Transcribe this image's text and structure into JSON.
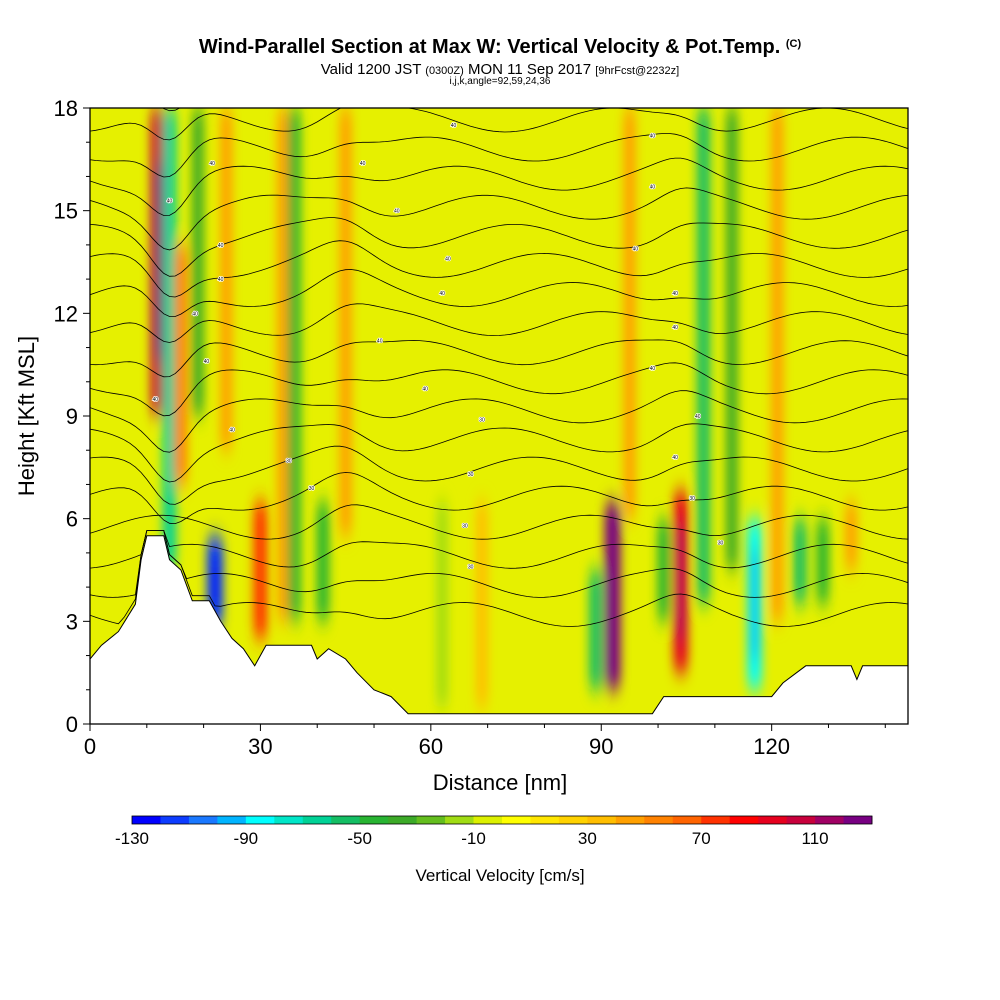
{
  "title": {
    "main": "Wind-Parallel Section at Max W: Vertical Velocity & Pot.Temp.",
    "copyright": "(C)",
    "valid": "Valid 1200 JST",
    "utc": "(0300Z)",
    "date": "MON 11 Sep 2017",
    "fcst": "[9hrFcst@2232z]",
    "indices": "i,j,k,angle=92,59,24,36"
  },
  "chart_data": {
    "type": "heatmap",
    "xlabel": "Distance [nm]",
    "ylabel": "Height [Kft MSL]",
    "xlim": [
      0,
      144
    ],
    "ylim": [
      0,
      18
    ],
    "x_ticks": [
      0,
      30,
      60,
      90,
      120
    ],
    "y_ticks": [
      0,
      3,
      6,
      9,
      12,
      15,
      18
    ],
    "background_color": "#e6f000",
    "colorbar": {
      "label": "Vertical Velocity [cm/s]",
      "range": [
        -130,
        130
      ],
      "step": 10,
      "tick_labels": [
        -130,
        -90,
        -50,
        -10,
        30,
        70,
        110
      ],
      "colors": [
        "#0000ff",
        "#0d3cff",
        "#1a78ff",
        "#00b4ff",
        "#00ffff",
        "#00e6c8",
        "#00d296",
        "#14be64",
        "#28b432",
        "#3caa28",
        "#64be1e",
        "#a0dc14",
        "#dcf000",
        "#ffff00",
        "#ffe600",
        "#ffd200",
        "#ffbe00",
        "#ffa000",
        "#ff8200",
        "#ff6400",
        "#ff3200",
        "#ff0000",
        "#e6001e",
        "#c8003c",
        "#a00064",
        "#780082"
      ]
    },
    "vertical_velocity_features_cm_s": [
      {
        "x": 12,
        "y_range": [
          9.0,
          18
        ],
        "w": 100
      },
      {
        "x": 14,
        "y_range": [
          4.5,
          18
        ],
        "w": -70
      },
      {
        "x": 16,
        "y_range": [
          7.0,
          14
        ],
        "w": 50
      },
      {
        "x": 19,
        "y_range": [
          9.0,
          18
        ],
        "w": -40
      },
      {
        "x": 22,
        "y_range": [
          2.8,
          5.5
        ],
        "w": -120
      },
      {
        "x": 24,
        "y_range": [
          8.0,
          18
        ],
        "w": 40
      },
      {
        "x": 30,
        "y_range": [
          2.5,
          6.5
        ],
        "w": 70
      },
      {
        "x": 34,
        "y_range": [
          3.0,
          18
        ],
        "w": 40
      },
      {
        "x": 36,
        "y_range": [
          3.0,
          18
        ],
        "w": -50
      },
      {
        "x": 41,
        "y_range": [
          3.0,
          6.5
        ],
        "w": -50
      },
      {
        "x": 45,
        "y_range": [
          5.5,
          18
        ],
        "w": 40
      },
      {
        "x": 62,
        "y_range": [
          0.5,
          6.5
        ],
        "w": -20
      },
      {
        "x": 69,
        "y_range": [
          0.5,
          6.5
        ],
        "w": 30
      },
      {
        "x": 89,
        "y_range": [
          1.0,
          4.5
        ],
        "w": -60
      },
      {
        "x": 92,
        "y_range": [
          1.0,
          6.5
        ],
        "w": 120
      },
      {
        "x": 95,
        "y_range": [
          6.0,
          18
        ],
        "w": 40
      },
      {
        "x": 101,
        "y_range": [
          3.0,
          6.0
        ],
        "w": -50
      },
      {
        "x": 104,
        "y_range": [
          1.5,
          6.8
        ],
        "w": 90
      },
      {
        "x": 108,
        "y_range": [
          3.5,
          18
        ],
        "w": -60
      },
      {
        "x": 113,
        "y_range": [
          4.5,
          18
        ],
        "w": -40
      },
      {
        "x": 117,
        "y_range": [
          1.0,
          6.0
        ],
        "w": -90
      },
      {
        "x": 121,
        "y_range": [
          3.0,
          18
        ],
        "w": 40
      },
      {
        "x": 125,
        "y_range": [
          3.5,
          6.0
        ],
        "w": -60
      },
      {
        "x": 129,
        "y_range": [
          3.5,
          6.0
        ],
        "w": -50
      },
      {
        "x": 134,
        "y_range": [
          4.5,
          6.5
        ],
        "w": 40
      }
    ],
    "terrain_profile": [
      {
        "x": 0,
        "y": 1.9
      },
      {
        "x": 2,
        "y": 2.3
      },
      {
        "x": 5,
        "y": 2.7
      },
      {
        "x": 8,
        "y": 3.5
      },
      {
        "x": 9,
        "y": 4.8
      },
      {
        "x": 10,
        "y": 5.5
      },
      {
        "x": 13,
        "y": 5.5
      },
      {
        "x": 14,
        "y": 4.8
      },
      {
        "x": 16,
        "y": 4.5
      },
      {
        "x": 18,
        "y": 3.6
      },
      {
        "x": 21,
        "y": 3.6
      },
      {
        "x": 23,
        "y": 3.0
      },
      {
        "x": 25,
        "y": 2.5
      },
      {
        "x": 27,
        "y": 2.2
      },
      {
        "x": 29,
        "y": 1.7
      },
      {
        "x": 31,
        "y": 2.3
      },
      {
        "x": 39,
        "y": 2.3
      },
      {
        "x": 40,
        "y": 1.9
      },
      {
        "x": 42,
        "y": 2.2
      },
      {
        "x": 45,
        "y": 1.9
      },
      {
        "x": 47,
        "y": 1.5
      },
      {
        "x": 50,
        "y": 1.0
      },
      {
        "x": 53,
        "y": 0.8
      },
      {
        "x": 56,
        "y": 0.3
      },
      {
        "x": 99,
        "y": 0.3
      },
      {
        "x": 101,
        "y": 0.8
      },
      {
        "x": 105,
        "y": 0.8
      },
      {
        "x": 110,
        "y": 0.8
      },
      {
        "x": 115,
        "y": 0.8
      },
      {
        "x": 120,
        "y": 0.8
      },
      {
        "x": 122,
        "y": 1.2
      },
      {
        "x": 126,
        "y": 1.7
      },
      {
        "x": 130,
        "y": 1.7
      },
      {
        "x": 134,
        "y": 1.7
      },
      {
        "x": 135,
        "y": 1.3
      },
      {
        "x": 136,
        "y": 1.7
      },
      {
        "x": 144,
        "y": 1.7
      }
    ],
    "pot_temp_contour_spacing_kft": 0.85,
    "contour_labels": [
      {
        "x": 64,
        "y": 17.5,
        "text": "40"
      },
      {
        "x": 99,
        "y": 17.2,
        "text": "40"
      },
      {
        "x": 21.5,
        "y": 16.4,
        "text": "40"
      },
      {
        "x": 48,
        "y": 16.4,
        "text": "40"
      },
      {
        "x": 99,
        "y": 15.7,
        "text": "40"
      },
      {
        "x": 14,
        "y": 15.3,
        "text": "40"
      },
      {
        "x": 54,
        "y": 15.0,
        "text": "40"
      },
      {
        "x": 23,
        "y": 14.0,
        "text": "40"
      },
      {
        "x": 96,
        "y": 13.9,
        "text": "40"
      },
      {
        "x": 63,
        "y": 13.6,
        "text": "40"
      },
      {
        "x": 23,
        "y": 13.0,
        "text": "40"
      },
      {
        "x": 62,
        "y": 12.6,
        "text": "40"
      },
      {
        "x": 103,
        "y": 12.6,
        "text": "40"
      },
      {
        "x": 18.5,
        "y": 12.0,
        "text": "40"
      },
      {
        "x": 103,
        "y": 11.6,
        "text": "40"
      },
      {
        "x": 51,
        "y": 11.2,
        "text": "40"
      },
      {
        "x": 20.5,
        "y": 10.6,
        "text": "40"
      },
      {
        "x": 99,
        "y": 10.4,
        "text": "40"
      },
      {
        "x": 59,
        "y": 9.8,
        "text": "40"
      },
      {
        "x": 11.5,
        "y": 9.5,
        "text": "40"
      },
      {
        "x": 107,
        "y": 9.0,
        "text": "40"
      },
      {
        "x": 69,
        "y": 8.9,
        "text": "30"
      },
      {
        "x": 25,
        "y": 8.6,
        "text": "40"
      },
      {
        "x": 103,
        "y": 7.8,
        "text": "40"
      },
      {
        "x": 35,
        "y": 7.7,
        "text": "30"
      },
      {
        "x": 67,
        "y": 7.3,
        "text": "30"
      },
      {
        "x": 39,
        "y": 6.9,
        "text": "30"
      },
      {
        "x": 106,
        "y": 6.6,
        "text": "30"
      },
      {
        "x": 66,
        "y": 5.8,
        "text": "30"
      },
      {
        "x": 111,
        "y": 5.3,
        "text": "30"
      },
      {
        "x": 67,
        "y": 4.6,
        "text": "30"
      }
    ]
  }
}
